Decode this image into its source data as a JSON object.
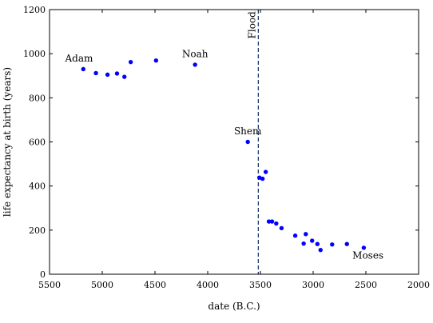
{
  "chart_data": {
    "type": "scatter",
    "xlabel": "date (B.C.)",
    "ylabel": "life expectancy at birth (years)",
    "xlim": [
      5500,
      2000
    ],
    "ylim": [
      0,
      1200
    ],
    "x_ticks": [
      "5500",
      "5000",
      "4500",
      "4000",
      "3500",
      "3000",
      "2500",
      "2000"
    ],
    "y_ticks": [
      "0",
      "200",
      "400",
      "600",
      "800",
      "1000",
      "1200"
    ],
    "grid": false,
    "marker_color": "#0000ff",
    "points": [
      {
        "x": 5180,
        "y": 930
      },
      {
        "x": 5060,
        "y": 912
      },
      {
        "x": 4950,
        "y": 905
      },
      {
        "x": 4860,
        "y": 910
      },
      {
        "x": 4790,
        "y": 895
      },
      {
        "x": 4730,
        "y": 962
      },
      {
        "x": 4490,
        "y": 969
      },
      {
        "x": 4120,
        "y": 950
      },
      {
        "x": 3620,
        "y": 600
      },
      {
        "x": 3510,
        "y": 438
      },
      {
        "x": 3480,
        "y": 433
      },
      {
        "x": 3450,
        "y": 464
      },
      {
        "x": 3420,
        "y": 239
      },
      {
        "x": 3390,
        "y": 239
      },
      {
        "x": 3350,
        "y": 230
      },
      {
        "x": 3300,
        "y": 209
      },
      {
        "x": 3170,
        "y": 175
      },
      {
        "x": 3090,
        "y": 139
      },
      {
        "x": 3070,
        "y": 182
      },
      {
        "x": 3010,
        "y": 152
      },
      {
        "x": 2960,
        "y": 137
      },
      {
        "x": 2930,
        "y": 110
      },
      {
        "x": 2820,
        "y": 135
      },
      {
        "x": 2680,
        "y": 137
      },
      {
        "x": 2520,
        "y": 120
      }
    ],
    "flood_line": {
      "x": 3520,
      "color": "#1f3d6b"
    },
    "annotations": [
      {
        "text": "Adam",
        "x": 5220,
        "y": 965
      },
      {
        "text": "Noah",
        "x": 4120,
        "y": 985
      },
      {
        "text": "Shem",
        "x": 3620,
        "y": 635
      },
      {
        "text": "Moses",
        "x": 2480,
        "y": 70
      },
      {
        "text": "Flood",
        "x": 3520,
        "y": 1130,
        "rotated": true
      }
    ]
  }
}
